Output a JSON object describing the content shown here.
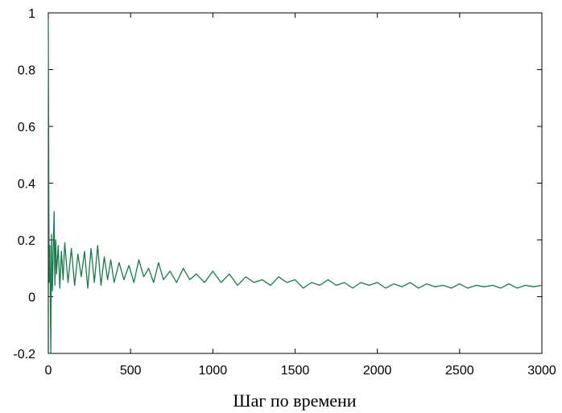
{
  "chart_data": {
    "type": "line",
    "title": "",
    "xlabel": "Шаг по времени",
    "ylabel": "",
    "xlim": [
      0,
      3000
    ],
    "ylim": [
      -0.2,
      1
    ],
    "xticks": [
      0,
      500,
      1000,
      1500,
      2000,
      2500,
      3000
    ],
    "xtick_labels": [
      "0",
      "500",
      "1000",
      "1500",
      "2000",
      "2500",
      "3000"
    ],
    "yticks": [
      -0.2,
      0,
      0.2,
      0.4,
      0.6,
      0.8,
      1
    ],
    "ytick_labels": [
      "-0.2",
      "0",
      "0.2",
      "0.4",
      "0.6",
      "0.8",
      "1"
    ],
    "grid": false,
    "legend": "none",
    "series": [
      {
        "color": "#1a7a4a",
        "x": [
          0,
          5,
          10,
          15,
          20,
          25,
          30,
          35,
          40,
          45,
          50,
          60,
          70,
          80,
          90,
          100,
          120,
          140,
          160,
          180,
          200,
          220,
          240,
          260,
          280,
          300,
          320,
          340,
          360,
          380,
          400,
          430,
          460,
          490,
          520,
          550,
          580,
          610,
          640,
          670,
          700,
          740,
          780,
          820,
          860,
          900,
          950,
          1000,
          1050,
          1100,
          1150,
          1200,
          1250,
          1300,
          1350,
          1400,
          1450,
          1500,
          1550,
          1600,
          1650,
          1700,
          1750,
          1800,
          1850,
          1900,
          1950,
          2000,
          2050,
          2100,
          2150,
          2200,
          2250,
          2300,
          2350,
          2400,
          2450,
          2500,
          2550,
          2600,
          2650,
          2700,
          2750,
          2800,
          2850,
          2900,
          2950,
          3000
        ],
        "y": [
          0.98,
          0.05,
          0.18,
          -0.2,
          0.22,
          0.02,
          0.15,
          0.3,
          0.04,
          0.2,
          0.08,
          0.18,
          0.03,
          0.16,
          0.06,
          0.19,
          0.05,
          0.17,
          0.04,
          0.15,
          0.07,
          0.16,
          0.03,
          0.17,
          0.05,
          0.18,
          0.04,
          0.14,
          0.06,
          0.13,
          0.05,
          0.12,
          0.06,
          0.11,
          0.05,
          0.13,
          0.07,
          0.1,
          0.05,
          0.12,
          0.06,
          0.09,
          0.05,
          0.1,
          0.06,
          0.08,
          0.05,
          0.09,
          0.05,
          0.08,
          0.04,
          0.07,
          0.05,
          0.06,
          0.04,
          0.07,
          0.05,
          0.06,
          0.03,
          0.05,
          0.04,
          0.06,
          0.04,
          0.05,
          0.03,
          0.05,
          0.04,
          0.05,
          0.03,
          0.045,
          0.035,
          0.05,
          0.03,
          0.045,
          0.035,
          0.04,
          0.03,
          0.045,
          0.03,
          0.04,
          0.035,
          0.04,
          0.03,
          0.045,
          0.03,
          0.04,
          0.035,
          0.04
        ]
      }
    ]
  }
}
